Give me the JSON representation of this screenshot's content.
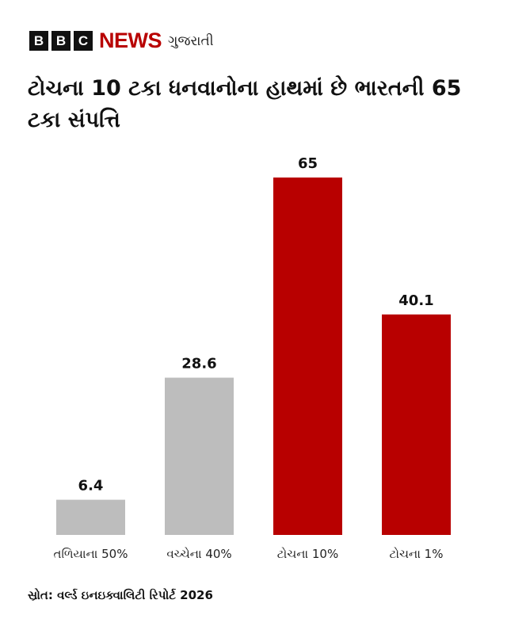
{
  "brand": {
    "blocks": [
      "B",
      "B",
      "C"
    ],
    "news": "NEWS",
    "language": "ગુજરાતી",
    "accent": "#b80000"
  },
  "chart_data": {
    "type": "bar",
    "title": "ટોચના 10 ટકા ધનવાનોના હાથમાં છે ભારતની 65 ટકા સંપત્તિ",
    "categories": [
      "તળિયાના 50%",
      "વચ્ચેના 40%",
      "ટોચના 10%",
      "ટોચના 1%"
    ],
    "values": [
      6.4,
      28.6,
      65,
      40.1
    ],
    "labels": [
      "6.4",
      "28.6",
      "65",
      "40.1"
    ],
    "colors": [
      "#bdbdbd",
      "#bdbdbd",
      "#b80000",
      "#b80000"
    ],
    "ylim": [
      0,
      65
    ],
    "grid": false,
    "xlabel": "",
    "ylabel": ""
  },
  "source": "સ્રોત: વર્લ્ડ ઇનઇક્વાલિટી રિપોર્ટ 2026"
}
